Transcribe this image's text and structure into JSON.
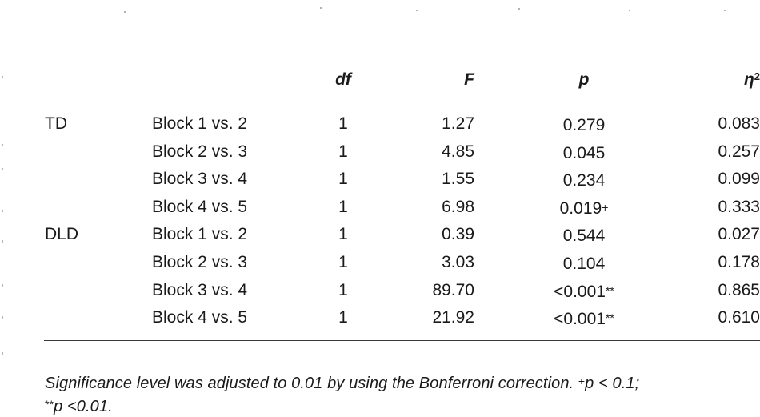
{
  "table": {
    "headers": {
      "group": "",
      "comparison": "",
      "df": "df",
      "F": "F",
      "p": "p",
      "eta_base": "η",
      "eta_sup": "2"
    },
    "rows": [
      {
        "group": "TD",
        "comparison": "Block 1 vs. 2",
        "df": "1",
        "F": "1.27",
        "p": "0.279",
        "p_mark": "",
        "eta": "0.083"
      },
      {
        "group": "",
        "comparison": "Block 2 vs. 3",
        "df": "1",
        "F": "4.85",
        "p": "0.045",
        "p_mark": "",
        "eta": "0.257"
      },
      {
        "group": "",
        "comparison": "Block 3 vs. 4",
        "df": "1",
        "F": "1.55",
        "p": "0.234",
        "p_mark": "",
        "eta": "0.099"
      },
      {
        "group": "",
        "comparison": "Block 4 vs. 5",
        "df": "1",
        "F": "6.98",
        "p": "0.019",
        "p_mark": "+",
        "eta": "0.333"
      },
      {
        "group": "DLD",
        "comparison": "Block 1 vs. 2",
        "df": "1",
        "F": "0.39",
        "p": "0.544",
        "p_mark": "",
        "eta": "0.027"
      },
      {
        "group": "",
        "comparison": "Block 2 vs. 3",
        "df": "1",
        "F": "3.03",
        "p": "0.104",
        "p_mark": "",
        "eta": "0.178"
      },
      {
        "group": "",
        "comparison": "Block 3 vs. 4",
        "df": "1",
        "F": "89.70",
        "p": "<0.001",
        "p_mark": "**",
        "eta": "0.865"
      },
      {
        "group": "",
        "comparison": "Block 4 vs. 5",
        "df": "1",
        "F": "21.92",
        "p": "<0.001",
        "p_mark": "**",
        "eta": "0.610"
      }
    ]
  },
  "footnote": {
    "line1_part1": "Significance level was adjusted to 0.01 by using the Bonferroni correction. ",
    "line1_mark": "+",
    "line1_part2": "p < 0.1;",
    "line2_mark": "**",
    "line2_part": "p <0.01."
  }
}
